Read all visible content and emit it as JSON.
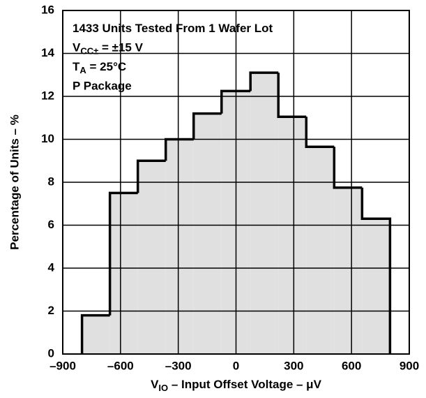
{
  "chart_data": {
    "type": "histogram",
    "bins": [
      -800,
      -655,
      -510,
      -365,
      -220,
      -75,
      75,
      220,
      365,
      510,
      655,
      800
    ],
    "values": [
      1.8,
      7.5,
      9.0,
      10.0,
      11.2,
      12.25,
      13.1,
      11.05,
      9.65,
      7.75,
      6.3
    ],
    "color": "#e0e0e0",
    "edge_color": "#000000",
    "xlim": [
      -900,
      900
    ],
    "xticks": [
      {
        "value": -900,
        "label": "–900"
      },
      {
        "value": -600,
        "label": "–600"
      },
      {
        "value": -300,
        "label": "–300"
      },
      0,
      300,
      600,
      900
    ],
    "ylim": [
      0,
      16
    ],
    "yticks": [
      0,
      2,
      4,
      6,
      8,
      10,
      12,
      14,
      16
    ],
    "grid": true,
    "ylabel": "Percentage of Units – %",
    "xlabel": [
      {
        "text": "V"
      },
      {
        "text": "IO",
        "sub": true
      },
      {
        "text": " – Input Offset Voltage – μV"
      }
    ],
    "annotations": [
      [
        {
          "text": "1433 Units Tested From 1 Wafer Lot"
        }
      ],
      [
        {
          "text": "V"
        },
        {
          "text": "CC±",
          "sub": true
        },
        {
          "text": " = ±15 V"
        }
      ],
      [
        {
          "text": "T"
        },
        {
          "text": "A",
          "sub": true
        },
        {
          "text": " = 25°C"
        }
      ],
      [
        {
          "text": " P Package"
        }
      ]
    ]
  }
}
